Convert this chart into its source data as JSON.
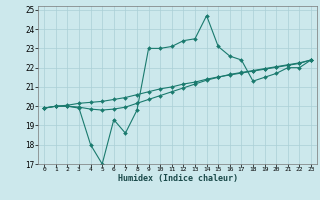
{
  "xlabel": "Humidex (Indice chaleur)",
  "xlim": [
    -0.5,
    23.5
  ],
  "ylim": [
    17,
    25.2
  ],
  "yticks": [
    17,
    18,
    19,
    20,
    21,
    22,
    23,
    24,
    25
  ],
  "xticks": [
    0,
    1,
    2,
    3,
    4,
    5,
    6,
    7,
    8,
    9,
    10,
    11,
    12,
    13,
    14,
    15,
    16,
    17,
    18,
    19,
    20,
    21,
    22,
    23
  ],
  "bg_color": "#cce8ec",
  "grid_color": "#aacfd6",
  "line_color": "#1a7a6e",
  "line1_x": [
    0,
    1,
    2,
    3,
    4,
    5,
    6,
    7,
    8,
    9,
    10,
    11,
    12,
    13,
    14,
    15,
    16,
    17,
    18,
    19,
    20,
    21,
    22,
    23
  ],
  "line1_y": [
    19.9,
    20.0,
    20.0,
    19.9,
    18.0,
    17.0,
    19.3,
    18.6,
    19.8,
    23.0,
    23.0,
    23.1,
    23.4,
    23.5,
    24.7,
    23.1,
    22.6,
    22.4,
    21.3,
    21.5,
    21.7,
    22.0,
    22.0,
    22.4
  ],
  "line2_x": [
    0,
    1,
    2,
    3,
    4,
    5,
    6,
    7,
    8,
    9,
    10,
    11,
    12,
    13,
    14,
    15,
    16,
    17,
    18,
    19,
    20,
    21,
    22,
    23
  ],
  "line2_y": [
    19.9,
    20.0,
    20.0,
    19.95,
    19.85,
    19.8,
    19.85,
    19.95,
    20.15,
    20.35,
    20.55,
    20.75,
    20.95,
    21.15,
    21.35,
    21.5,
    21.65,
    21.75,
    21.85,
    21.95,
    22.05,
    22.15,
    22.25,
    22.4
  ],
  "line3_x": [
    0,
    1,
    2,
    3,
    4,
    5,
    6,
    7,
    8,
    9,
    10,
    11,
    12,
    13,
    14,
    15,
    16,
    17,
    18,
    19,
    20,
    21,
    22,
    23
  ],
  "line3_y": [
    19.9,
    20.0,
    20.05,
    20.15,
    20.2,
    20.25,
    20.35,
    20.45,
    20.6,
    20.75,
    20.9,
    21.0,
    21.15,
    21.25,
    21.4,
    21.52,
    21.62,
    21.72,
    21.82,
    21.92,
    22.02,
    22.12,
    22.22,
    22.4
  ]
}
